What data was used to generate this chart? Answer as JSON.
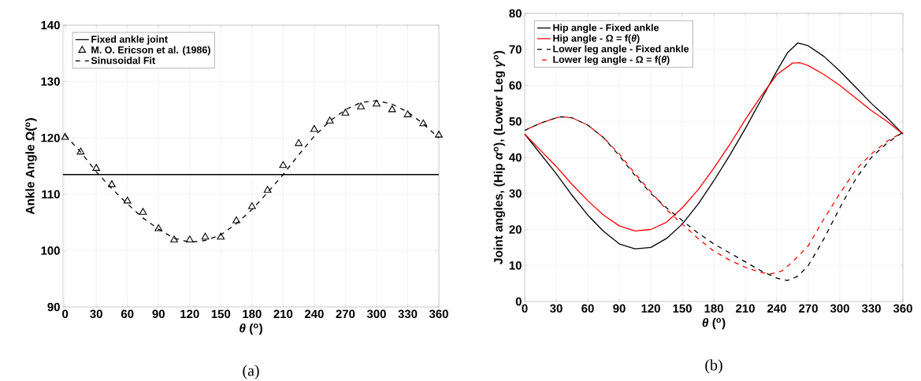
{
  "chart_data": [
    {
      "type": "line",
      "xlabel": "*θ* ($^{o}$)",
      "ylabel": "Ankle Angle Ω($^{o}$)",
      "xlim": [
        -2,
        360
      ],
      "ylim": [
        90,
        140
      ],
      "xticks": [
        0,
        30,
        60,
        90,
        120,
        150,
        180,
        210,
        240,
        270,
        300,
        330,
        360
      ],
      "yticks": [
        90,
        100,
        110,
        120,
        130,
        140
      ],
      "grid": true,
      "legend": "top left",
      "annotations": [
        "(a)"
      ],
      "series": [
        {
          "name": "Fixed ankle joint",
          "color": "#000000",
          "line_style": "solid",
          "x": [
            -2,
            360
          ],
          "values": [
            113.5,
            113.5
          ]
        },
        {
          "name": "M. O. Ericson et al. (1986)",
          "type": "scatter",
          "marker": "triangle",
          "color": "#000000",
          "x": [
            0,
            15,
            30,
            45,
            60,
            75,
            90,
            105,
            120,
            135,
            150,
            165,
            180,
            195,
            210,
            225,
            240,
            255,
            270,
            285,
            300,
            315,
            330,
            345,
            360
          ],
          "values": [
            120.1,
            117.5,
            114.6,
            111.7,
            108.8,
            106.8,
            103.9,
            101.9,
            101.9,
            102.4,
            102.4,
            105.3,
            107.8,
            110.7,
            115.1,
            119.0,
            121.5,
            123.0,
            124.4,
            125.5,
            126.0,
            125.0,
            124.1,
            122.5,
            120.5
          ]
        },
        {
          "name": "Sinusoidal Fit",
          "color": "#000000",
          "line_style": "dashed",
          "x": [
            0,
            15,
            30,
            45,
            60,
            75,
            90,
            105,
            120,
            135,
            150,
            165,
            180,
            195,
            210,
            225,
            240,
            255,
            270,
            285,
            300,
            315,
            330,
            345,
            360
          ],
          "values": [
            120.5,
            117.5,
            114.0,
            111.0,
            108.3,
            105.8,
            103.8,
            102.2,
            101.5,
            101.8,
            102.8,
            104.8,
            107.3,
            110.3,
            113.5,
            117.0,
            120.3,
            123.0,
            125.0,
            126.3,
            126.6,
            126.0,
            124.6,
            122.5,
            120.0
          ]
        }
      ]
    },
    {
      "type": "line",
      "xlabel": "*θ* ($^{o}$)",
      "ylabel": "Joint angles,  (Hip *α*$^{o}$), (Lower Leg *γ*$^{o}$)",
      "xlim": [
        0,
        360
      ],
      "ylim": [
        0,
        80
      ],
      "xticks": [
        0,
        30,
        60,
        90,
        120,
        150,
        180,
        210,
        240,
        270,
        300,
        330,
        360
      ],
      "yticks": [
        0,
        10,
        20,
        30,
        40,
        50,
        60,
        70,
        80
      ],
      "grid": true,
      "legend": "top left",
      "annotations": [
        "(b)"
      ],
      "series": [
        {
          "name": "Hip angle - Fixed ankle",
          "color": "#000000",
          "line_style": "solid",
          "x": [
            0,
            15,
            30,
            45,
            60,
            75,
            90,
            105,
            120,
            135,
            150,
            165,
            180,
            195,
            210,
            225,
            240,
            250,
            260,
            270,
            285,
            300,
            315,
            330,
            345,
            360
          ],
          "values": [
            46.5,
            41,
            35.5,
            29.5,
            24,
            19.5,
            16,
            14.6,
            15,
            17.5,
            21.5,
            27,
            33.5,
            40.5,
            48,
            56,
            64,
            69,
            71.8,
            71,
            68,
            64,
            59.5,
            55,
            51,
            46.5
          ]
        },
        {
          "name": "Hip angle - Ω = f(*θ*)",
          "color": "#ff0000",
          "line_style": "solid",
          "x": [
            0,
            15,
            30,
            45,
            60,
            75,
            90,
            105,
            120,
            135,
            150,
            165,
            180,
            195,
            210,
            225,
            240,
            255,
            262,
            270,
            285,
            300,
            315,
            330,
            345,
            360
          ],
          "values": [
            46.5,
            42,
            37.5,
            32.5,
            28,
            24,
            21,
            19.6,
            20,
            22,
            26,
            31,
            37,
            43.5,
            50.5,
            57,
            63,
            66.2,
            66.3,
            65.5,
            63,
            60,
            56.5,
            53,
            50,
            46.5
          ]
        },
        {
          "name": "Lower leg angle - Fixed ankle",
          "color": "#000000",
          "line_style": "dashed",
          "x": [
            0,
            15,
            30,
            35,
            45,
            60,
            75,
            90,
            105,
            120,
            135,
            150,
            165,
            180,
            195,
            210,
            225,
            240,
            250,
            260,
            270,
            285,
            300,
            315,
            330,
            345,
            360
          ],
          "values": [
            47.5,
            49.5,
            51,
            51.3,
            51,
            49,
            45.5,
            40.5,
            35,
            30,
            26,
            22.5,
            19,
            16,
            13.5,
            11,
            8.5,
            6.5,
            5.8,
            7,
            10,
            17.5,
            26,
            34,
            40,
            44,
            47
          ]
        },
        {
          "name": "Lower leg angle - Ω = f(*θ*)",
          "color": "#ff0000",
          "line_style": "dashed",
          "x": [
            0,
            15,
            30,
            35,
            45,
            60,
            75,
            90,
            105,
            120,
            135,
            150,
            165,
            180,
            195,
            210,
            225,
            235,
            245,
            255,
            270,
            285,
            300,
            315,
            330,
            345,
            360
          ],
          "values": [
            47.5,
            49.5,
            51,
            51.3,
            51,
            49,
            45.5,
            41,
            35.5,
            30.5,
            25.5,
            21.5,
            17.5,
            14,
            11.5,
            9.5,
            8,
            7.7,
            8.5,
            11,
            15.5,
            23,
            30,
            36.5,
            41,
            44.5,
            47
          ]
        }
      ]
    }
  ]
}
